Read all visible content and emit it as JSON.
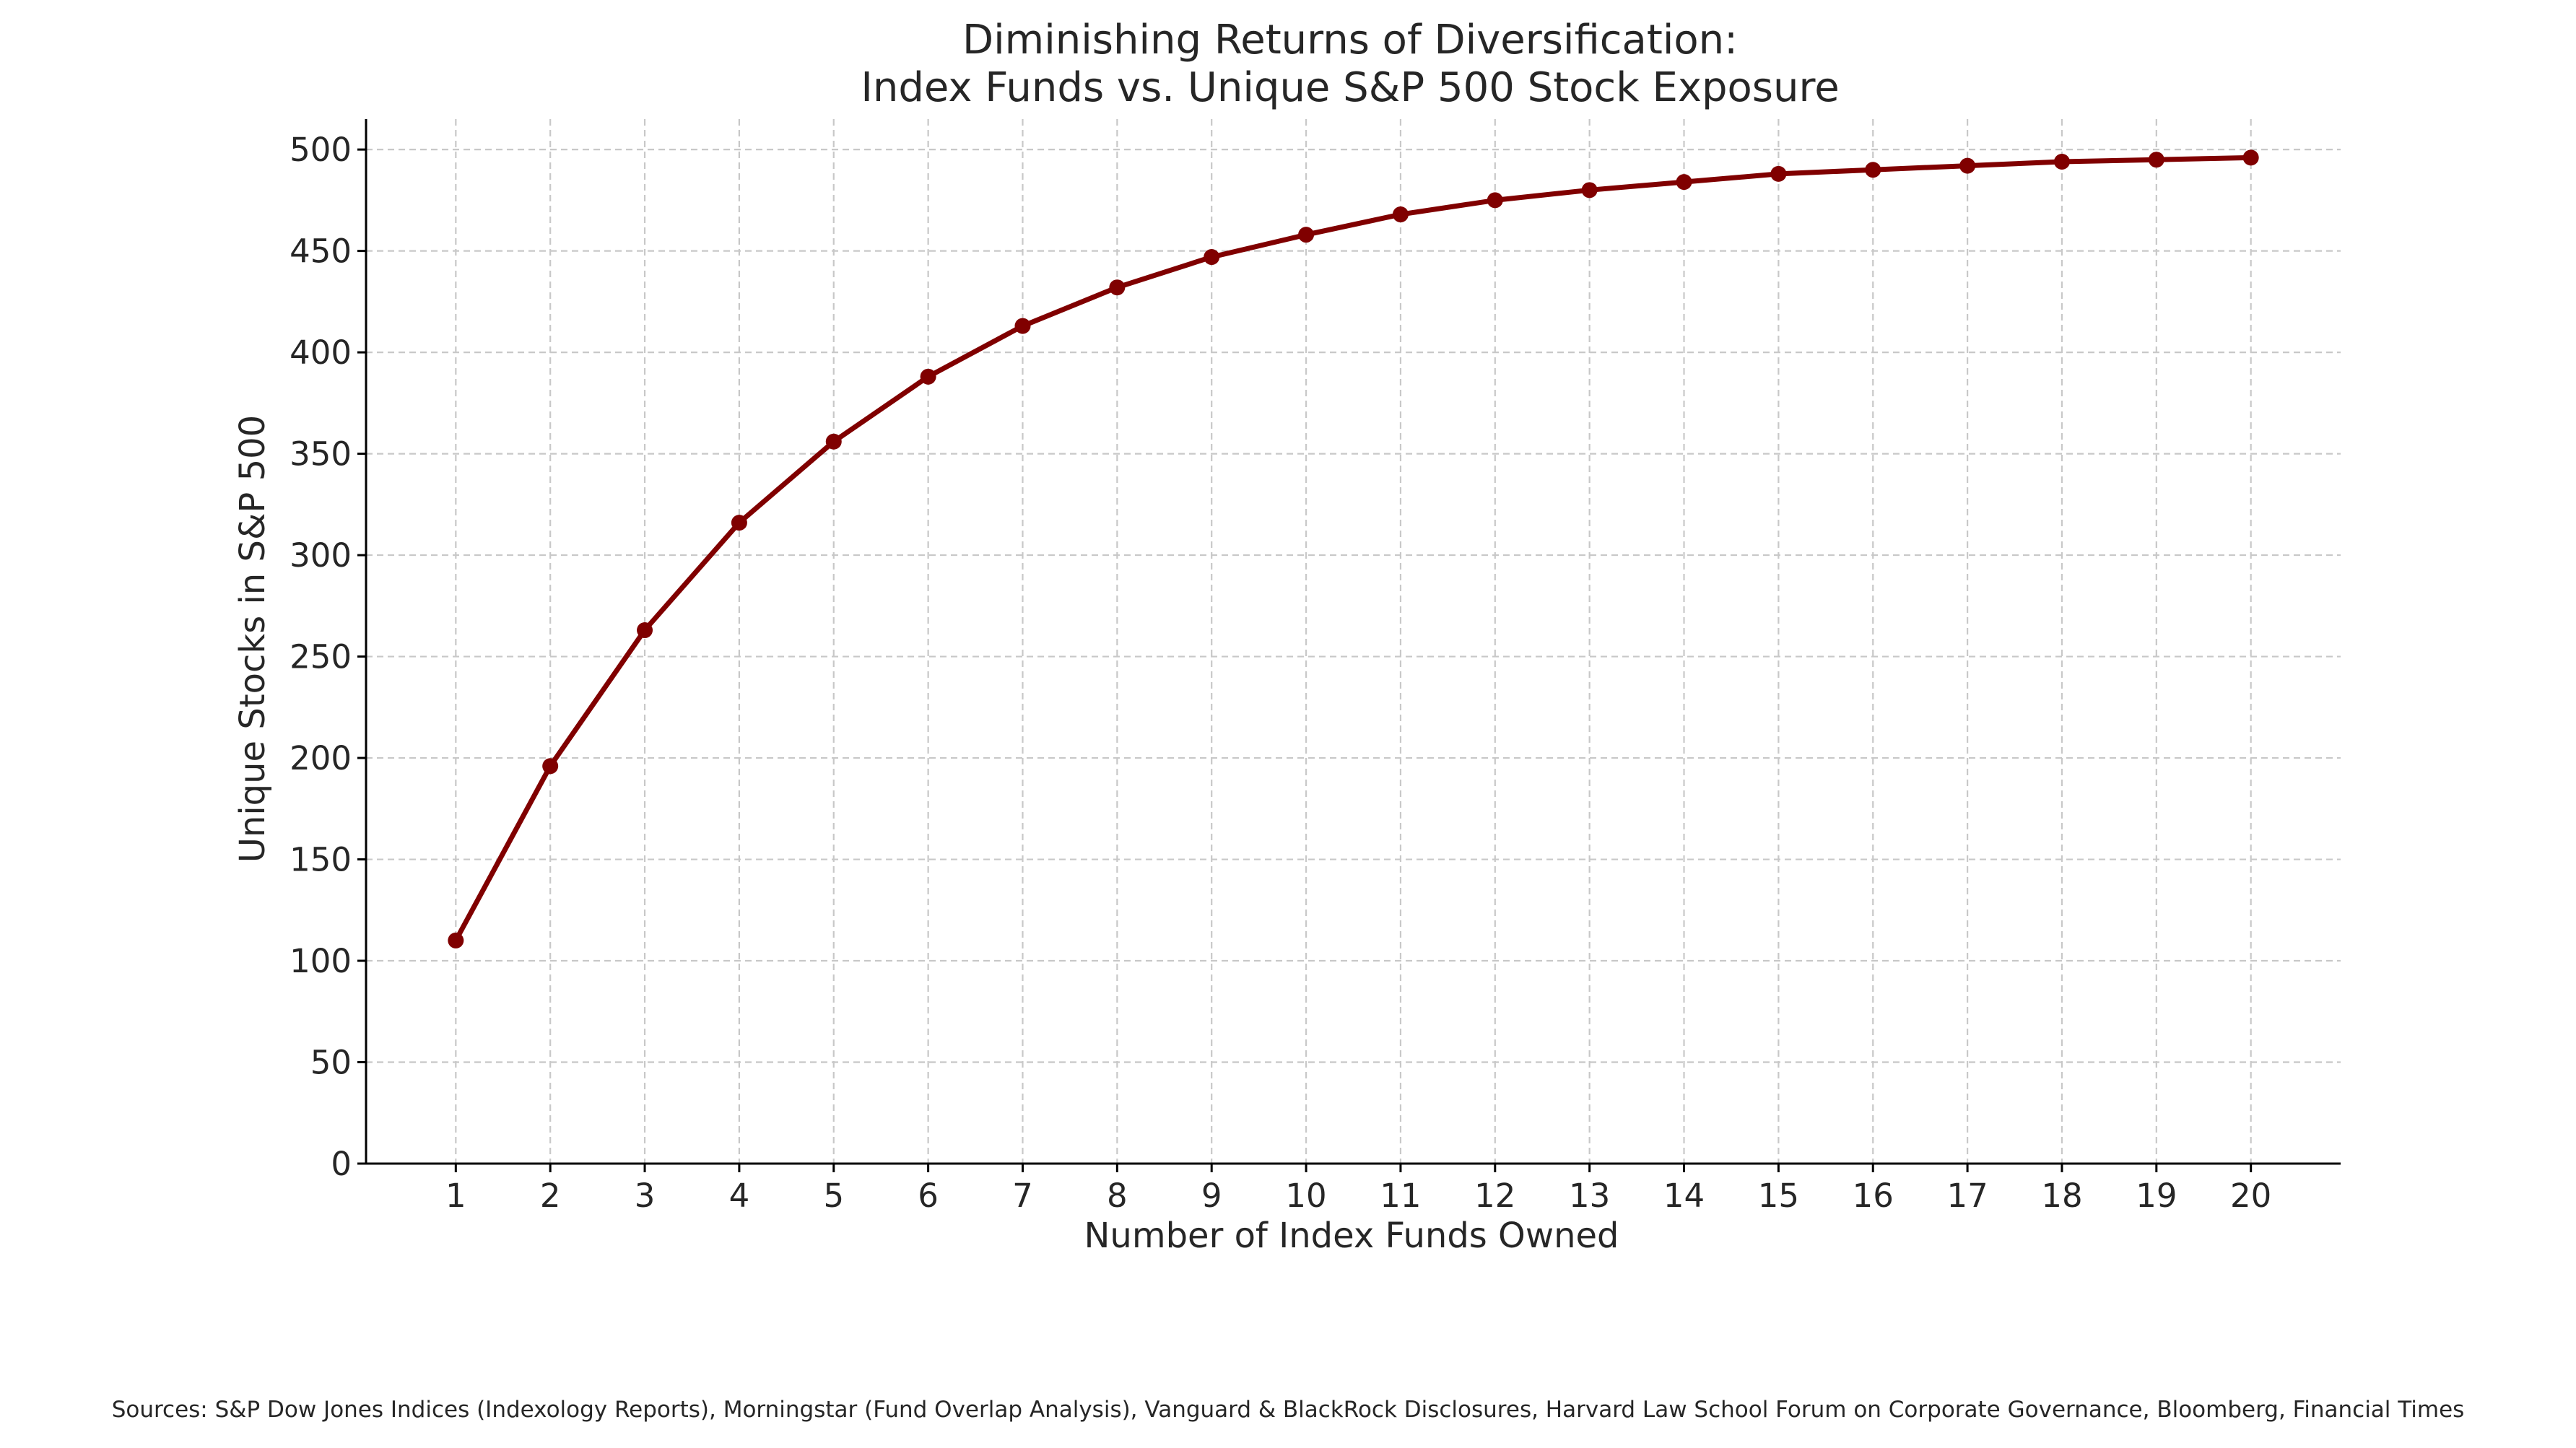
{
  "chart_data": {
    "type": "line",
    "title": [
      "Diminishing Returns of Diversification:",
      "Index Funds vs. Unique S&P 500 Stock Exposure"
    ],
    "xlabel": "Number of Index Funds Owned",
    "ylabel": "Unique Stocks in S&P 500",
    "x": [
      1,
      2,
      3,
      4,
      5,
      6,
      7,
      8,
      9,
      10,
      11,
      12,
      13,
      14,
      15,
      16,
      17,
      18,
      19,
      20
    ],
    "values": [
      110,
      196,
      263,
      316,
      356,
      388,
      413,
      432,
      447,
      458,
      468,
      475,
      480,
      484,
      488,
      490,
      492,
      494,
      495,
      496
    ],
    "xlim": [
      0.05,
      20.95
    ],
    "ylim": [
      0,
      515
    ],
    "yticks": [
      0,
      50,
      100,
      150,
      200,
      250,
      300,
      350,
      400,
      450,
      500
    ],
    "xticks": [
      1,
      2,
      3,
      4,
      5,
      6,
      7,
      8,
      9,
      10,
      11,
      12,
      13,
      14,
      15,
      16,
      17,
      18,
      19,
      20
    ],
    "grid": true,
    "line_color": "#800000",
    "marker": "circle",
    "source": "Sources: S&P Dow Jones Indices (Indexology Reports), Morningstar (Fund Overlap Analysis), Vanguard & BlackRock Disclosures, Harvard Law School Forum on Corporate Governance, Bloomberg, Financial Times"
  }
}
